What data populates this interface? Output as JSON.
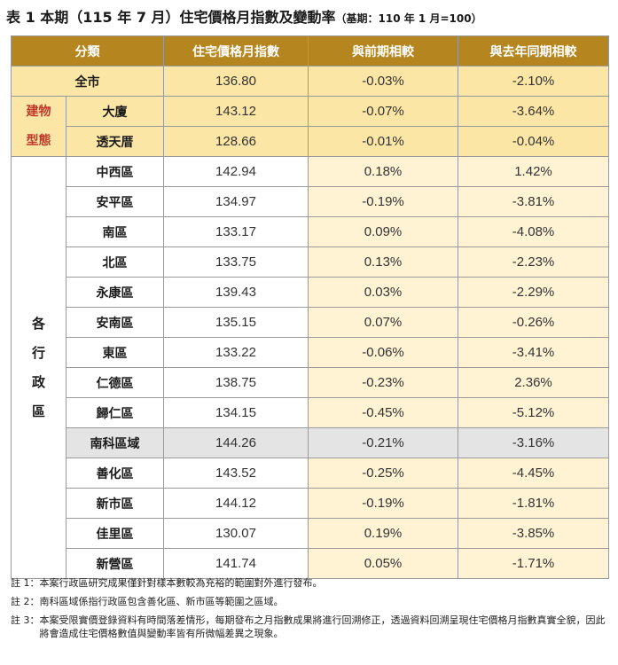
{
  "title": {
    "main": "表 1 本期（115 年 7 月）住宅價格月指數及變動率",
    "base": "（基期：110 年 1 月=100）"
  },
  "headers": [
    "分類",
    "住宅價格月指數",
    "與前期相較",
    "與去年同期相較"
  ],
  "total": {
    "name": "全市",
    "index": "136.80",
    "mom": "-0.03%",
    "yoy": "-2.10%"
  },
  "building_type": {
    "label_line1": "建物",
    "label_line2": "型態",
    "rows": [
      {
        "name": "大廈",
        "index": "143.12",
        "mom": "-0.07%",
        "yoy": "-3.64%"
      },
      {
        "name": "透天厝",
        "index": "128.66",
        "mom": "-0.01%",
        "yoy": "-0.04%"
      }
    ]
  },
  "districts": {
    "label_chars": [
      "各",
      "行",
      "政",
      "區"
    ],
    "rows": [
      {
        "name": "中西區",
        "index": "142.94",
        "mom": "0.18%",
        "yoy": "1.42%"
      },
      {
        "name": "安平區",
        "index": "134.97",
        "mom": "-0.19%",
        "yoy": "-3.81%"
      },
      {
        "name": "南區",
        "index": "133.17",
        "mom": "0.09%",
        "yoy": "-4.08%"
      },
      {
        "name": "北區",
        "index": "133.75",
        "mom": "0.13%",
        "yoy": "-2.23%"
      },
      {
        "name": "永康區",
        "index": "139.43",
        "mom": "0.03%",
        "yoy": "-2.29%"
      },
      {
        "name": "安南區",
        "index": "135.15",
        "mom": "0.07%",
        "yoy": "-0.26%"
      },
      {
        "name": "東區",
        "index": "133.22",
        "mom": "-0.06%",
        "yoy": "-3.41%"
      },
      {
        "name": "仁德區",
        "index": "138.75",
        "mom": "-0.23%",
        "yoy": "2.36%"
      },
      {
        "name": "歸仁區",
        "index": "134.15",
        "mom": "-0.45%",
        "yoy": "-5.12%"
      },
      {
        "name": "南科區域",
        "index": "144.26",
        "mom": "-0.21%",
        "yoy": "-3.16%"
      },
      {
        "name": "善化區",
        "index": "143.52",
        "mom": "-0.25%",
        "yoy": "-4.45%"
      },
      {
        "name": "新市區",
        "index": "144.12",
        "mom": "-0.19%",
        "yoy": "-1.81%"
      },
      {
        "name": "佳里區",
        "index": "130.07",
        "mom": "0.19%",
        "yoy": "-3.85%"
      },
      {
        "name": "新營區",
        "index": "141.74",
        "mom": "0.05%",
        "yoy": "-1.71%"
      }
    ]
  },
  "notes": [
    {
      "label": "註 1：",
      "text": "本案行政區研究成果僅針對樣本數較為充裕的範圍對外進行發布。"
    },
    {
      "label": "註 2：",
      "text": "南科區域係指行政區包含善化區、新市區等範圍之區域。"
    },
    {
      "label": "註 3：",
      "text": "本案受限實價登錄資料有時間落差情形，每期發布之月指數成果將進行回溯修正，透過資料回溯呈現住宅價格月指數真實全貌，因此將會造成住宅價格數值與變動率皆有所微幅差異之現象。"
    }
  ],
  "colors": {
    "header_bg": "#b5861f",
    "total_bg": "#fbe6a6",
    "type_label": "#c0392b",
    "highlight_col": "#fff3d4",
    "gray_row": "#e4e4e4"
  }
}
